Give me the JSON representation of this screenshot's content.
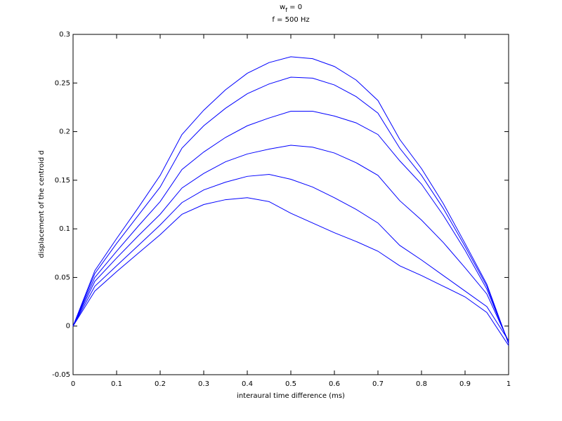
{
  "chart_data": {
    "type": "line",
    "title": [
      "w",
      "f",
      " = 0"
    ],
    "subtitle": "f = 500 Hz",
    "x_label": "interaural time difference (ms)",
    "y_label": "displacement of the centroid d",
    "x": [
      0,
      0.05,
      0.1,
      0.15,
      0.2,
      0.25,
      0.3,
      0.35,
      0.4,
      0.45,
      0.5,
      0.55,
      0.6,
      0.65,
      0.7,
      0.75,
      0.8,
      0.85,
      0.9,
      0.95,
      1
    ],
    "series": [
      {
        "color": "#0000ff",
        "values": [
          0,
          0.057,
          0.09,
          0.122,
          0.155,
          0.197,
          0.222,
          0.243,
          0.26,
          0.271,
          0.277,
          0.275,
          0.267,
          0.253,
          0.232,
          0.192,
          0.162,
          0.126,
          0.085,
          0.043,
          -0.018
        ]
      },
      {
        "color": "#0000ff",
        "values": [
          0,
          0.054,
          0.085,
          0.114,
          0.143,
          0.183,
          0.206,
          0.224,
          0.239,
          0.249,
          0.256,
          0.255,
          0.248,
          0.236,
          0.219,
          0.183,
          0.155,
          0.121,
          0.082,
          0.041,
          -0.018
        ]
      },
      {
        "color": "#0000ff",
        "values": [
          0,
          0.05,
          0.077,
          0.103,
          0.128,
          0.161,
          0.179,
          0.194,
          0.206,
          0.214,
          0.221,
          0.221,
          0.216,
          0.209,
          0.197,
          0.17,
          0.146,
          0.114,
          0.078,
          0.038,
          -0.017
        ]
      },
      {
        "color": "#0000ff",
        "values": [
          0,
          0.046,
          0.07,
          0.093,
          0.115,
          0.142,
          0.157,
          0.169,
          0.177,
          0.182,
          0.186,
          0.184,
          0.178,
          0.168,
          0.155,
          0.129,
          0.109,
          0.086,
          0.06,
          0.033,
          -0.016
        ]
      },
      {
        "color": "#0000ff",
        "values": [
          0,
          0.041,
          0.062,
          0.083,
          0.104,
          0.127,
          0.14,
          0.148,
          0.154,
          0.156,
          0.151,
          0.143,
          0.132,
          0.12,
          0.106,
          0.083,
          0.068,
          0.052,
          0.036,
          0.02,
          -0.015
        ]
      },
      {
        "color": "#0000ff",
        "values": [
          0,
          0.036,
          0.056,
          0.075,
          0.094,
          0.115,
          0.125,
          0.13,
          0.132,
          0.128,
          0.116,
          0.106,
          0.096,
          0.087,
          0.077,
          0.062,
          0.052,
          0.041,
          0.03,
          0.014,
          -0.02
        ]
      }
    ],
    "xlim": [
      0,
      1
    ],
    "xticks": [
      0,
      0.1,
      0.2,
      0.3,
      0.4,
      0.5,
      0.6,
      0.7,
      0.8,
      0.9,
      1
    ],
    "ylim": [
      -0.05,
      0.3
    ],
    "yticks": [
      -0.05,
      0,
      0.05,
      0.1,
      0.15,
      0.2,
      0.25,
      0.3
    ]
  }
}
